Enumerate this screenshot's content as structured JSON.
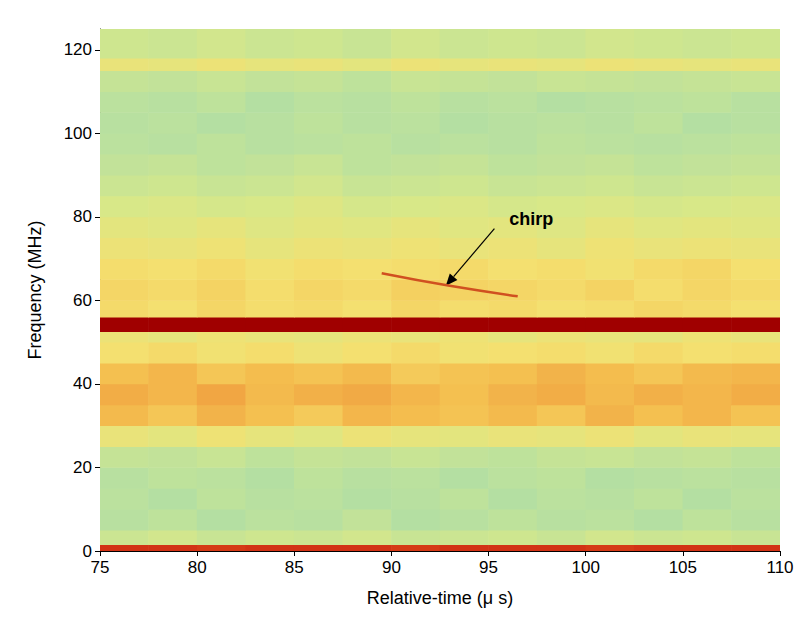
{
  "chart_data": {
    "type": "heatmap",
    "xlabel": "Relative-time (μ s)",
    "ylabel": "Frequency (MHz)",
    "xlim": [
      75,
      110
    ],
    "ylim": [
      0,
      125
    ],
    "xticks": [
      75,
      80,
      85,
      90,
      95,
      100,
      105,
      110
    ],
    "yticks": [
      0,
      20,
      40,
      60,
      80,
      100,
      120
    ],
    "grid": false,
    "zlim": [
      0,
      10
    ],
    "x_edges": [
      75,
      77.5,
      80,
      82.5,
      85,
      87.5,
      90,
      92.5,
      95,
      97.5,
      100,
      102.5,
      105,
      107.5,
      110
    ],
    "y_edges": [
      0,
      1.5,
      5,
      10,
      15,
      20,
      25,
      30,
      35,
      40,
      45,
      50,
      52.5,
      56,
      60,
      65,
      70,
      75,
      80,
      85,
      90,
      95,
      100,
      105,
      110,
      115,
      118,
      125
    ],
    "levels": [
      [
        9.2,
        9.2,
        9.1,
        9.2,
        9.2,
        9.2,
        9.1,
        9.2,
        9.2,
        9.2,
        9.1,
        9.2,
        9.2,
        9.2
      ],
      [
        3.6,
        3.8,
        3.5,
        3.7,
        3.6,
        3.8,
        3.5,
        3.6,
        3.7,
        3.5,
        3.8,
        3.6,
        3.7,
        3.5
      ],
      [
        3.0,
        3.2,
        2.9,
        3.1,
        3.0,
        3.3,
        2.9,
        3.0,
        3.2,
        3.0,
        3.1,
        2.9,
        3.2,
        3.0
      ],
      [
        3.1,
        2.9,
        3.2,
        3.0,
        3.1,
        2.9,
        3.0,
        3.2,
        2.9,
        3.1,
        3.0,
        3.2,
        2.9,
        3.1
      ],
      [
        3.0,
        3.2,
        3.1,
        2.9,
        3.2,
        3.0,
        3.1,
        2.9,
        3.1,
        3.2,
        2.9,
        3.0,
        3.1,
        3.0
      ],
      [
        3.4,
        3.3,
        3.5,
        3.2,
        3.4,
        3.3,
        3.5,
        3.3,
        3.2,
        3.4,
        3.5,
        3.3,
        3.4,
        3.2
      ],
      [
        4.6,
        4.4,
        4.8,
        4.5,
        4.3,
        4.7,
        4.5,
        4.4,
        4.6,
        4.5,
        4.7,
        4.4,
        4.6,
        4.5
      ],
      [
        6.2,
        5.8,
        6.4,
        6.0,
        5.7,
        6.3,
        6.1,
        5.9,
        6.2,
        5.8,
        6.4,
        6.0,
        6.3,
        5.9
      ],
      [
        6.6,
        6.3,
        6.8,
        6.2,
        6.5,
        6.7,
        6.3,
        6.0,
        6.4,
        6.6,
        6.2,
        6.5,
        6.3,
        6.6
      ],
      [
        6.0,
        6.3,
        5.8,
        6.1,
        5.9,
        6.2,
        5.7,
        5.9,
        6.0,
        6.4,
        6.1,
        5.8,
        6.2,
        6.3
      ],
      [
        5.0,
        5.2,
        4.9,
        5.1,
        4.8,
        5.0,
        5.2,
        4.9,
        5.0,
        5.1,
        4.9,
        5.2,
        5.0,
        5.1
      ],
      [
        4.7,
        4.5,
        4.8,
        4.6,
        4.5,
        4.7,
        4.6,
        4.8,
        4.5,
        4.7,
        4.6,
        4.5,
        4.8,
        4.6
      ],
      [
        10,
        10,
        10,
        10,
        10,
        10,
        10,
        10,
        10,
        10,
        10,
        10,
        10,
        10
      ],
      [
        5.2,
        5.0,
        5.3,
        5.1,
        5.2,
        5.0,
        5.3,
        5.1,
        5.2,
        5.0,
        5.1,
        5.3,
        5.2,
        5.0
      ],
      [
        5.3,
        5.2,
        5.4,
        5.1,
        5.3,
        5.2,
        5.5,
        5.4,
        5.3,
        5.2,
        5.4,
        5.1,
        5.3,
        5.2
      ],
      [
        5.1,
        5.0,
        5.2,
        4.9,
        5.1,
        5.0,
        5.1,
        5.2,
        5.0,
        5.1,
        4.9,
        5.2,
        5.3,
        5.0
      ],
      [
        4.7,
        4.6,
        4.8,
        4.5,
        4.7,
        4.6,
        4.8,
        4.6,
        4.7,
        4.5,
        4.8,
        4.6,
        4.7,
        4.6
      ],
      [
        4.4,
        4.3,
        4.5,
        4.2,
        4.4,
        4.3,
        4.5,
        4.3,
        4.4,
        4.2,
        4.5,
        4.3,
        4.4,
        4.3
      ],
      [
        4.0,
        4.1,
        3.9,
        4.0,
        4.2,
        3.9,
        4.0,
        4.1,
        3.9,
        4.0,
        4.1,
        3.9,
        4.0,
        4.1
      ],
      [
        3.6,
        3.7,
        3.5,
        3.6,
        3.8,
        3.5,
        3.6,
        3.7,
        3.5,
        3.6,
        3.7,
        3.5,
        3.6,
        3.7
      ],
      [
        3.3,
        3.4,
        3.2,
        3.3,
        3.5,
        3.2,
        3.3,
        3.4,
        3.2,
        3.3,
        3.4,
        3.2,
        3.3,
        3.4
      ],
      [
        3.1,
        3.0,
        3.2,
        3.0,
        3.1,
        3.2,
        3.0,
        3.1,
        3.0,
        3.2,
        3.1,
        3.0,
        3.1,
        3.2
      ],
      [
        3.0,
        3.1,
        2.9,
        3.0,
        3.2,
        3.0,
        3.1,
        2.9,
        3.0,
        3.1,
        3.0,
        3.2,
        2.9,
        3.0
      ],
      [
        3.1,
        3.0,
        3.2,
        2.9,
        3.1,
        3.0,
        3.2,
        3.0,
        3.1,
        2.9,
        3.0,
        3.1,
        3.2,
        3.0
      ],
      [
        3.4,
        3.3,
        3.5,
        3.3,
        3.4,
        3.2,
        3.5,
        3.4,
        3.3,
        3.5,
        3.4,
        3.3,
        3.4,
        3.5
      ],
      [
        4.6,
        4.5,
        4.7,
        4.5,
        4.6,
        4.4,
        4.7,
        4.5,
        4.6,
        4.5,
        4.7,
        4.6,
        4.5,
        4.6
      ],
      [
        3.7,
        3.6,
        3.8,
        3.6,
        3.7,
        3.5,
        3.8,
        3.6,
        3.7,
        3.6,
        3.8,
        3.7,
        3.6,
        3.7
      ]
    ],
    "series": [
      {
        "type": "line",
        "color": "#d05020",
        "x": [
          89.5,
          93,
          96.5
        ],
        "values": [
          66.5,
          63.5,
          61
        ]
      }
    ],
    "annotations": [
      {
        "text": "chirp",
        "x": 97.2,
        "y": 79.5,
        "arrow_from": [
          95.3,
          77.2
        ],
        "arrow_to": [
          92.8,
          63.5
        ]
      }
    ]
  }
}
